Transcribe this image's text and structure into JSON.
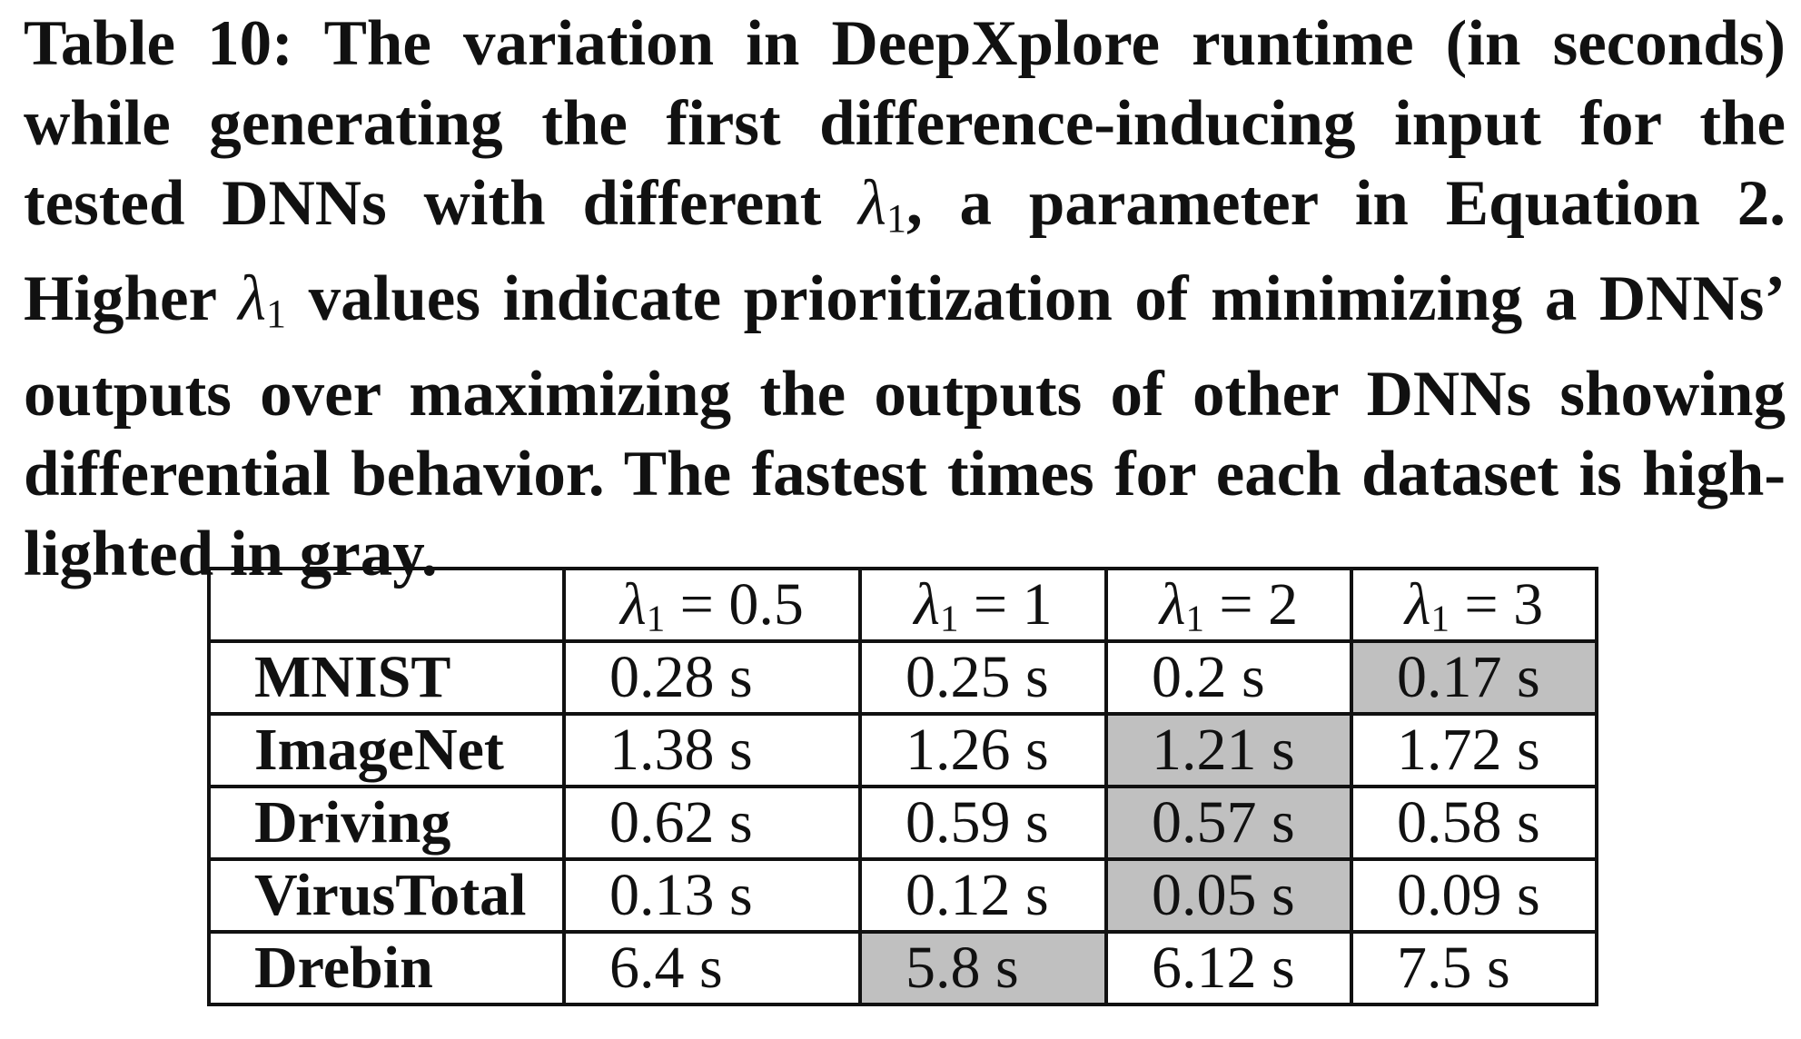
{
  "caption": {
    "lines": [
      "Table 10: The variation in DeepXplore runtime (in seconds)",
      "while generating the first difference-inducing input for the",
      "tested DNNs with different λ1, a parameter in Equation 2.",
      "Higher λ1 values indicate prioritization of minimizing a DNNs’",
      "outputs over maximizing the outputs of other DNNs showing",
      "differential behavior. The fastest times for each dataset is high-",
      "lighted in gray."
    ]
  },
  "table": {
    "columns": [
      {
        "symbol": "λ",
        "sub": "1",
        "eq": " = 0.5"
      },
      {
        "symbol": "λ",
        "sub": "1",
        "eq": " = 1"
      },
      {
        "symbol": "λ",
        "sub": "1",
        "eq": " = 2"
      },
      {
        "symbol": "λ",
        "sub": "1",
        "eq": " = 3"
      }
    ],
    "rows": [
      {
        "name": "MNIST",
        "values": [
          "0.28 s",
          "0.25 s",
          "0.2 s",
          "0.17 s"
        ],
        "fastest_index": 3
      },
      {
        "name": "ImageNet",
        "values": [
          "1.38 s",
          "1.26 s",
          "1.21 s",
          "1.72 s"
        ],
        "fastest_index": 2
      },
      {
        "name": "Driving",
        "values": [
          "0.62 s",
          "0.59 s",
          "0.57 s",
          "0.58 s"
        ],
        "fastest_index": 2
      },
      {
        "name": "VirusTotal",
        "values": [
          "0.13 s",
          "0.12 s",
          "0.05 s",
          "0.09 s"
        ],
        "fastest_index": 2
      },
      {
        "name": "Drebin",
        "values": [
          "6.4 s",
          "5.8 s",
          "6.12 s",
          "7.5 s"
        ],
        "fastest_index": 1
      }
    ],
    "highlight_color": "#c0c0c0"
  }
}
